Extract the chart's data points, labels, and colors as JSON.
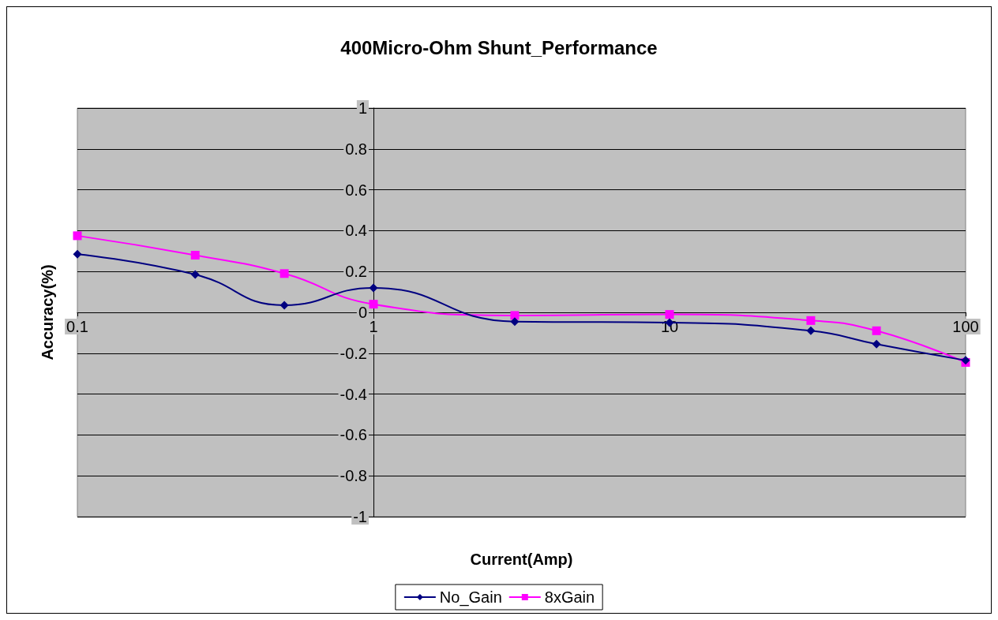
{
  "chart_data": {
    "type": "line",
    "title": "400Micro-Ohm Shunt_Performance",
    "xlabel": "Current(Amp)",
    "ylabel": "Accuracy(%)",
    "x": [
      0.1,
      0.25,
      0.5,
      1,
      3,
      10,
      30,
      50,
      100
    ],
    "series": [
      {
        "name": "No_Gain",
        "color": "#000080",
        "marker": "diamond",
        "values": [
          0.285,
          0.185,
          0.035,
          0.12,
          -0.045,
          -0.05,
          -0.09,
          -0.155,
          -0.235
        ]
      },
      {
        "name": "8xGain",
        "color": "#ff00ff",
        "marker": "square",
        "values": [
          0.375,
          0.28,
          0.19,
          0.04,
          -0.015,
          -0.01,
          -0.04,
          -0.09,
          -0.245
        ]
      }
    ],
    "log": "x",
    "xlim": [
      0.1,
      100
    ],
    "xticks": [
      0.1,
      1,
      10,
      100
    ],
    "ylim": [
      -1,
      1
    ],
    "yticks": [
      -1,
      -0.8,
      -0.6,
      -0.4,
      -0.2,
      0,
      0.2,
      0.4,
      0.6,
      0.8,
      1
    ],
    "grid": "y",
    "legend": "bottom",
    "line_style": "solid"
  }
}
